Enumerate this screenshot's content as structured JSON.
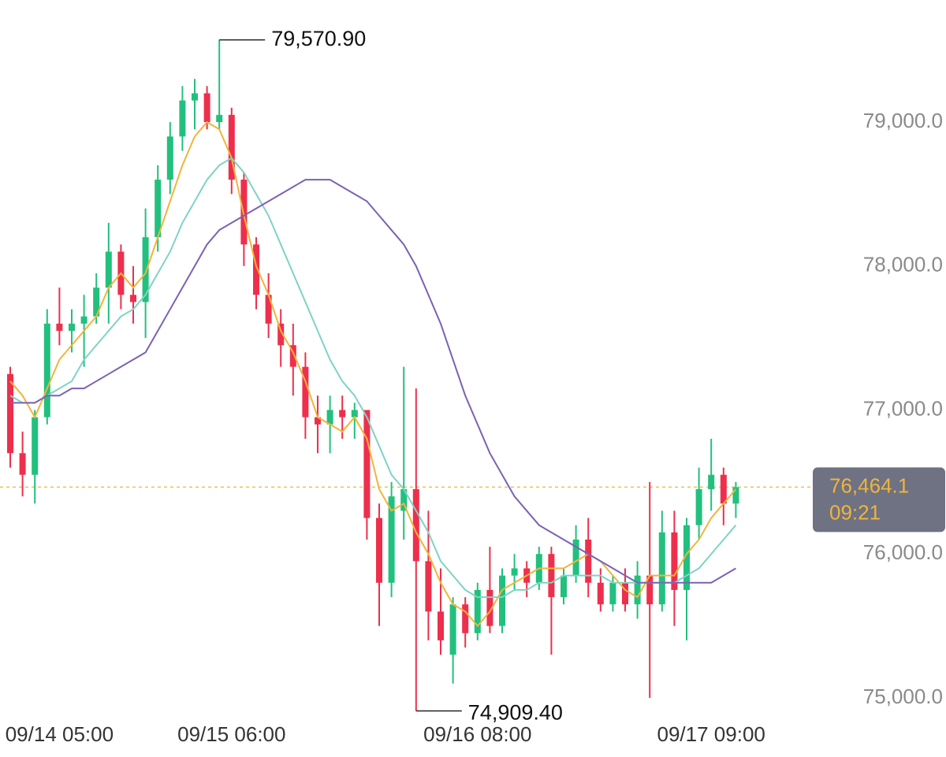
{
  "chart_data": {
    "type": "candlestick",
    "categories": [
      null,
      null,
      null,
      null,
      "09/14 05:00",
      null,
      null,
      null,
      null,
      null,
      null,
      null,
      null,
      null,
      null,
      null,
      null,
      null,
      "09/15 06:00",
      null,
      null,
      null,
      null,
      null,
      null,
      null,
      null,
      null,
      null,
      null,
      null,
      null,
      null,
      null,
      null,
      null,
      null,
      null,
      "09/16 08:00",
      null,
      null,
      null,
      null,
      null,
      null,
      null,
      null,
      null,
      null,
      null,
      null,
      null,
      null,
      null,
      null,
      null,
      null,
      "09/17 09:00",
      null,
      null
    ],
    "open": [
      77250,
      76700,
      76550,
      76950,
      77600,
      77550,
      77600,
      77650,
      77850,
      78100,
      77800,
      77750,
      78200,
      78600,
      78900,
      79150,
      79200,
      79000,
      79050,
      78600,
      78150,
      77800,
      77600,
      77450,
      77300,
      76950,
      76900,
      77000,
      76950,
      77000,
      76250,
      75800,
      76300,
      76450,
      75950,
      75600,
      75300,
      75650,
      75450,
      75750,
      75500,
      75850,
      75900,
      75800,
      76000,
      75700,
      75850,
      76100,
      75800,
      75650,
      75800,
      75650,
      75850,
      75650,
      76150,
      75750,
      76200,
      76450,
      76550,
      76350
    ],
    "high": [
      77300,
      76850,
      77000,
      77700,
      77850,
      77700,
      77800,
      77950,
      78300,
      78150,
      78000,
      78400,
      78700,
      79000,
      79250,
      79300,
      79250,
      79570.9,
      79100,
      78650,
      78200,
      77950,
      77700,
      77600,
      77400,
      77100,
      77100,
      77100,
      77050,
      77000,
      76350,
      76500,
      77300,
      77150,
      76300,
      75900,
      75700,
      75700,
      75800,
      76050,
      75900,
      76000,
      75950,
      76050,
      76050,
      75900,
      76200,
      76250,
      75900,
      75850,
      75900,
      75950,
      76500,
      76300,
      76300,
      76250,
      76600,
      76800,
      76600,
      76500
    ],
    "low": [
      76600,
      76400,
      76350,
      76900,
      77450,
      77400,
      77300,
      77600,
      77600,
      77700,
      77600,
      77500,
      78100,
      78500,
      78800,
      78950,
      78950,
      78950,
      78500,
      78000,
      77700,
      77500,
      77300,
      77100,
      76800,
      76700,
      76700,
      76800,
      76800,
      76100,
      75500,
      75700,
      76100,
      74909.4,
      75400,
      75300,
      75100,
      75350,
      75400,
      75450,
      75450,
      75750,
      75700,
      75750,
      75300,
      75650,
      75800,
      75700,
      75600,
      75600,
      75600,
      75550,
      75000,
      75600,
      75500,
      75400,
      76100,
      76300,
      76200,
      76250
    ],
    "close": [
      76700,
      76550,
      76950,
      77600,
      77550,
      77600,
      77650,
      77850,
      78100,
      77800,
      77750,
      78200,
      78600,
      78900,
      79150,
      79200,
      79000,
      79050,
      78600,
      78150,
      77800,
      77600,
      77450,
      77300,
      76950,
      76900,
      77000,
      76950,
      77000,
      76250,
      75800,
      76400,
      76450,
      75950,
      75600,
      75400,
      75650,
      75450,
      75750,
      75500,
      75850,
      75900,
      75800,
      76000,
      75700,
      75850,
      76100,
      75800,
      75650,
      75800,
      75650,
      75850,
      75650,
      76150,
      75750,
      76200,
      76450,
      76550,
      76350,
      76464.1
    ],
    "up_color": "#22c07e",
    "down_color": "#ee2f4c",
    "moving_averages": [
      {
        "color": "#f2b43a",
        "values": [
          77200,
          77100,
          76950,
          77150,
          77350,
          77450,
          77550,
          77650,
          77850,
          77950,
          77850,
          77950,
          78200,
          78450,
          78700,
          78900,
          79000,
          78950,
          78750,
          78350,
          78000,
          77800,
          77550,
          77400,
          77200,
          76950,
          76900,
          76850,
          76950,
          76800,
          76450,
          76300,
          76350,
          76150,
          76000,
          75800,
          75650,
          75600,
          75500,
          75600,
          75750,
          75800,
          75850,
          75900,
          75900,
          75900,
          75950,
          76000,
          75950,
          75850,
          75750,
          75700,
          75850,
          75850,
          75850,
          76000,
          76100,
          76250,
          76350,
          76450
        ]
      },
      {
        "color": "#7fd3c4",
        "values": [
          77100,
          77050,
          77050,
          77100,
          77150,
          77200,
          77350,
          77450,
          77550,
          77650,
          77700,
          77800,
          77950,
          78100,
          78300,
          78450,
          78600,
          78700,
          78750,
          78650,
          78500,
          78350,
          78150,
          77950,
          77750,
          77550,
          77350,
          77200,
          77100,
          76950,
          76750,
          76550,
          76450,
          76300,
          76150,
          75950,
          75850,
          75750,
          75700,
          75700,
          75700,
          75750,
          75750,
          75800,
          75800,
          75850,
          75850,
          75850,
          75850,
          75800,
          75800,
          75800,
          75800,
          75800,
          75800,
          75850,
          75900,
          76000,
          76100,
          76200
        ]
      },
      {
        "color": "#7b62b3",
        "values": [
          77050,
          77050,
          77050,
          77100,
          77100,
          77150,
          77150,
          77200,
          77250,
          77300,
          77350,
          77400,
          77550,
          77700,
          77850,
          78000,
          78150,
          78250,
          78300,
          78350,
          78400,
          78450,
          78500,
          78550,
          78600,
          78600,
          78600,
          78550,
          78500,
          78450,
          78350,
          78250,
          78150,
          78000,
          77800,
          77600,
          77350,
          77100,
          76900,
          76700,
          76550,
          76400,
          76300,
          76200,
          76150,
          76100,
          76050,
          76000,
          75950,
          75900,
          75850,
          75800,
          75800,
          75800,
          75800,
          75800,
          75800,
          75800,
          75850,
          75900
        ]
      }
    ],
    "ylim": [
      74617,
      79848
    ],
    "yticks": [
      {
        "value": 75000,
        "label": "75,000.0"
      },
      {
        "value": 76000,
        "label": "76,000.0"
      },
      {
        "value": 77000,
        "label": "77,000.0"
      },
      {
        "value": 78000,
        "label": "78,000.0"
      },
      {
        "value": 79000,
        "label": "79,000.0"
      }
    ],
    "high_label": {
      "value": 79570.9,
      "label": "79,570.90"
    },
    "low_label": {
      "value": 74909.4,
      "label": "74,909.40"
    },
    "current_price": {
      "value": 76464.1,
      "label": "76,464.1",
      "countdown": "09:21"
    }
  }
}
